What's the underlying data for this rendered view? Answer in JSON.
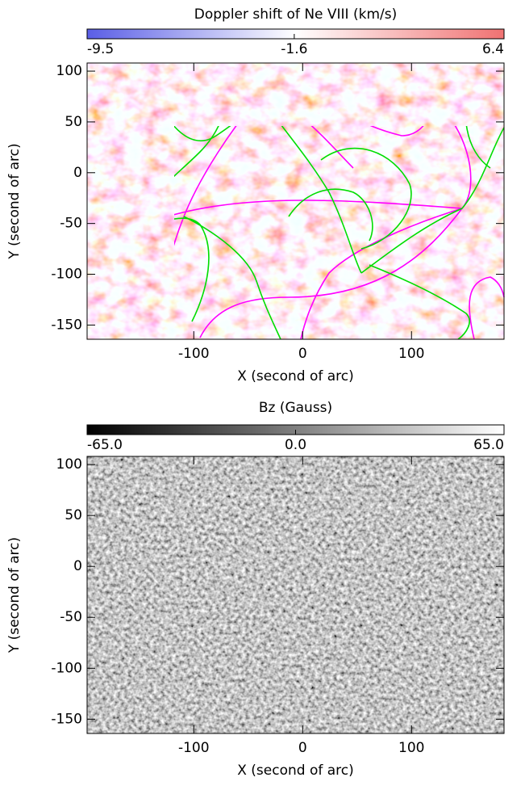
{
  "chart_data": [
    {
      "type": "image",
      "title": "Doppler shift of Ne VIII (km/s)",
      "xlabel": "X (second of arc)",
      "ylabel": "Y (second of arc)",
      "xlim": [
        -198,
        185
      ],
      "ylim": [
        -164,
        108
      ],
      "xticks": [
        -100,
        0,
        100
      ],
      "yticks": [
        -150,
        -100,
        -50,
        0,
        50,
        100
      ],
      "clim": [
        -9.5,
        6.4
      ],
      "cticks": [
        -9.5,
        -1.6,
        6.4
      ],
      "colormap": [
        "#5a5ee6",
        "#ffffff",
        "#f07272"
      ]
    },
    {
      "type": "image",
      "title": "Bz (Gauss)",
      "xlabel": "X (second of arc)",
      "ylabel": "Y (second of arc)",
      "xlim": [
        -198,
        185
      ],
      "ylim": [
        -164,
        108
      ],
      "xticks": [
        -100,
        0,
        100
      ],
      "yticks": [
        -150,
        -100,
        -50,
        0,
        50,
        100
      ],
      "clim": [
        -65,
        65
      ],
      "cticks": [
        {
          "value": -65,
          "label": "-65.0"
        },
        {
          "value": 0,
          "label": "0.0"
        },
        {
          "value": 65,
          "label": "65.0"
        }
      ],
      "colormap": [
        "#000000",
        "#ffffff"
      ]
    }
  ]
}
